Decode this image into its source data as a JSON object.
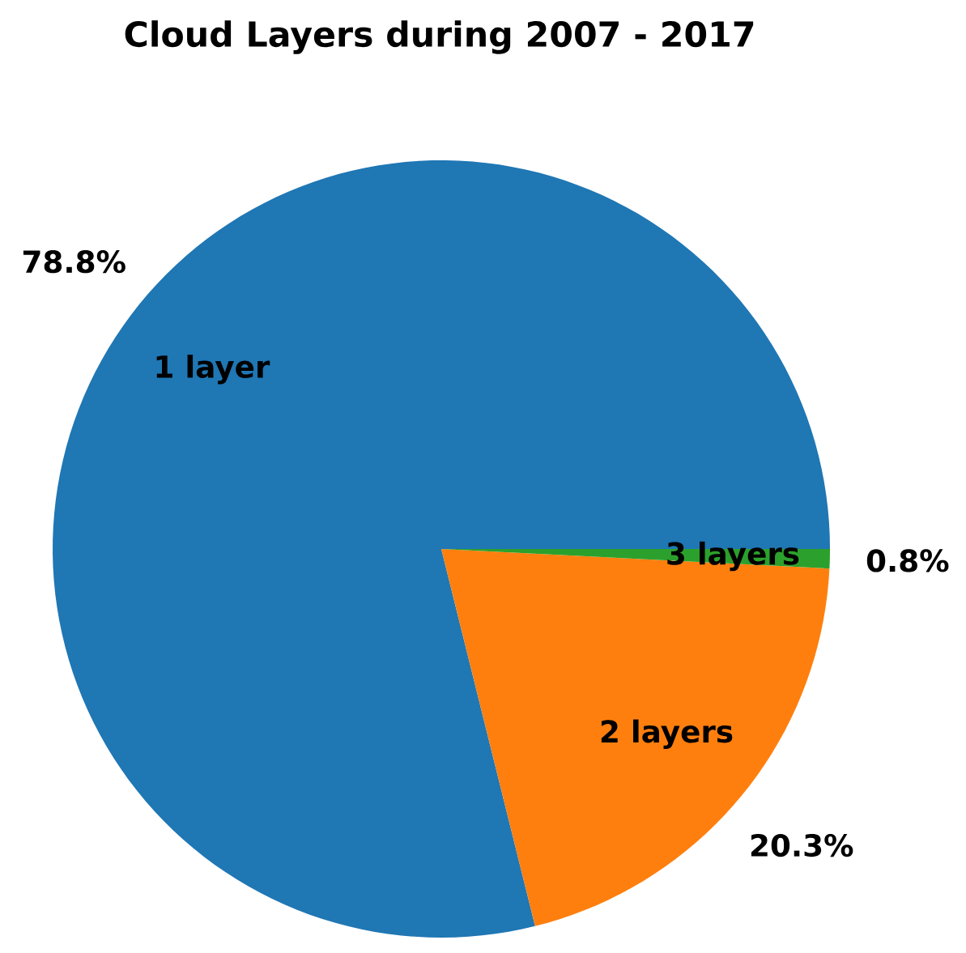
{
  "chart_data": {
    "type": "pie",
    "title": "Cloud Layers during 2007 - 2017",
    "categories": [
      "1 layer",
      "2 layers",
      "3 layers"
    ],
    "values": [
      78.8,
      20.3,
      0.8
    ],
    "value_labels": [
      "78.8%",
      "20.3%",
      "0.8%"
    ],
    "colors": [
      "#1f77b4",
      "#ff7f0e",
      "#2ca02c"
    ]
  }
}
